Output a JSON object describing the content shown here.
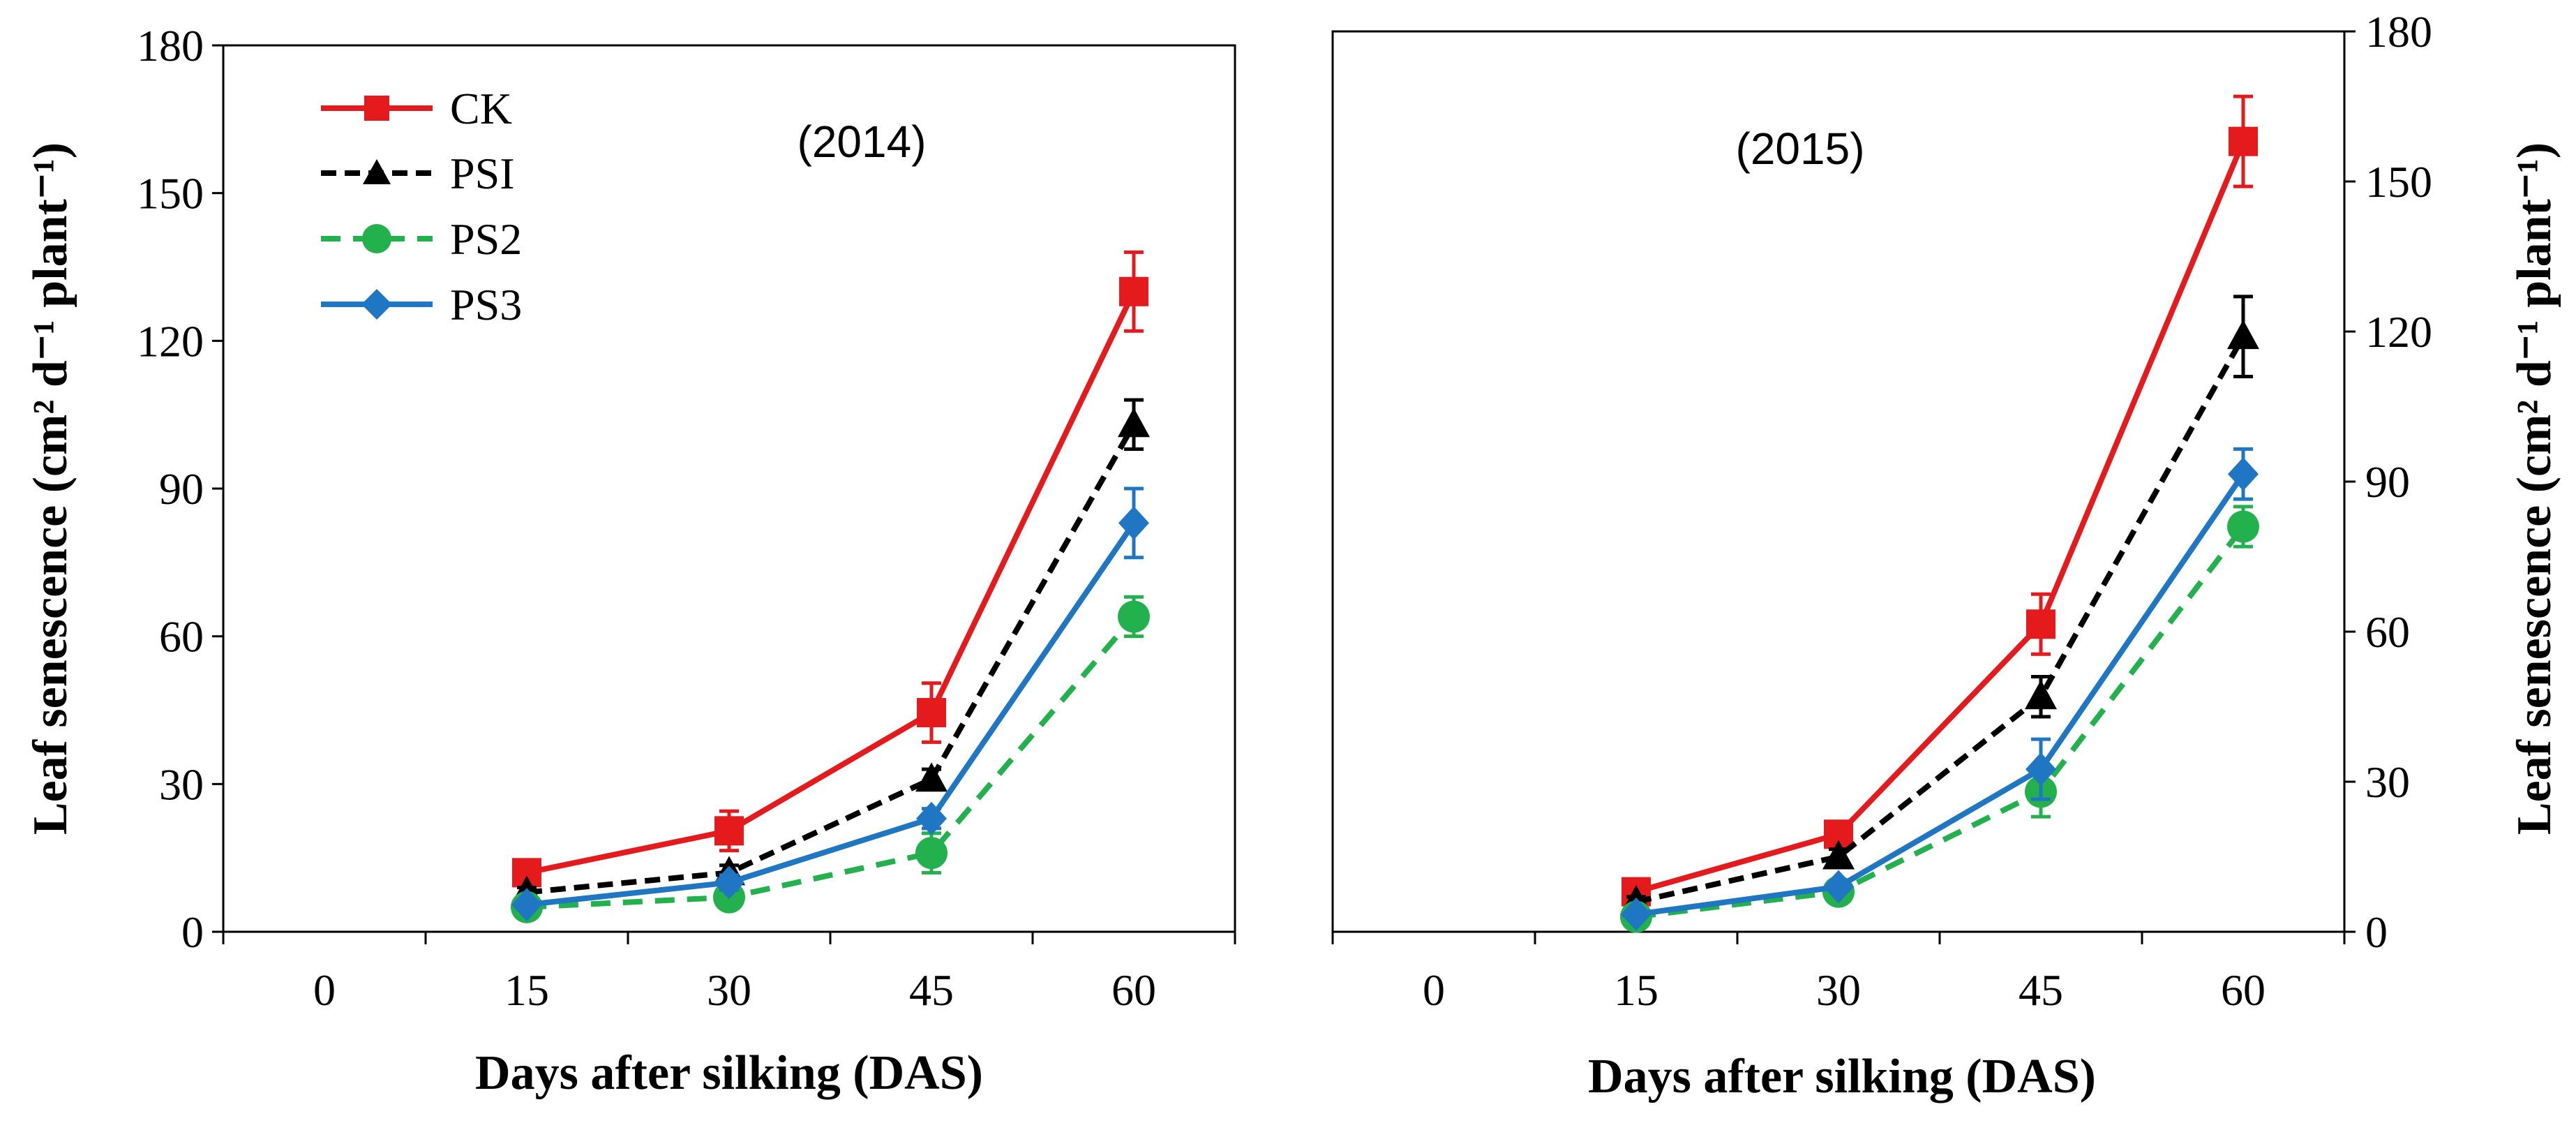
{
  "chart_data": [
    {
      "type": "line",
      "panel_label": "(2014)",
      "xlabel": "Days after silking (DAS)",
      "ylabel": "Leaf senescence (cm² d⁻¹ plant⁻¹)",
      "x_ticks": [
        "0",
        "15",
        "30",
        "45",
        "60"
      ],
      "y_ticks": [
        "0",
        "30",
        "60",
        "90",
        "120",
        "150",
        "180"
      ],
      "ylim": [
        0,
        180
      ],
      "y_axis_side": "left",
      "legend_position": "top-left",
      "x": [
        15,
        30,
        45,
        60
      ],
      "series": [
        {
          "name": "CK",
          "color": "#e41a1c",
          "dash": "solid",
          "marker": "square",
          "values": [
            12,
            20.5,
            44.5,
            130
          ],
          "errors": [
            2,
            4,
            6,
            8
          ]
        },
        {
          "name": "PSI",
          "color": "#000000",
          "dash": "dashed",
          "marker": "triangle",
          "values": [
            8,
            12,
            31,
            103
          ],
          "errors": [
            1,
            1.5,
            2,
            5
          ]
        },
        {
          "name": "PS2",
          "color": "#22b14c",
          "dash": "dashed",
          "marker": "circle",
          "values": [
            5,
            7,
            16,
            64
          ],
          "errors": [
            1,
            1.5,
            4,
            4
          ]
        },
        {
          "name": "PS3",
          "color": "#1f77c4",
          "dash": "solid",
          "marker": "diamond",
          "values": [
            5.5,
            10,
            23,
            83
          ],
          "errors": [
            1,
            1.5,
            2,
            7
          ]
        }
      ]
    },
    {
      "type": "line",
      "panel_label": "(2015)",
      "xlabel": "Days after silking (DAS)",
      "ylabel": "Leaf senescence (cm² d⁻¹ plant⁻¹)",
      "x_ticks": [
        "0",
        "15",
        "30",
        "45",
        "60"
      ],
      "y_ticks": [
        "0",
        "30",
        "60",
        "90",
        "120",
        "150",
        "180"
      ],
      "ylim": [
        0,
        180
      ],
      "y_axis_side": "right",
      "x": [
        15,
        30,
        45,
        60
      ],
      "series": [
        {
          "name": "CK",
          "color": "#e41a1c",
          "dash": "solid",
          "marker": "square",
          "values": [
            8,
            19.5,
            61.5,
            158
          ],
          "errors": [
            1.5,
            2,
            6,
            9
          ]
        },
        {
          "name": "PSI",
          "color": "#000000",
          "dash": "dashed",
          "marker": "triangle",
          "values": [
            6,
            15,
            47,
            119
          ],
          "errors": [
            1,
            1.5,
            4,
            8
          ]
        },
        {
          "name": "PS2",
          "color": "#22b14c",
          "dash": "dashed",
          "marker": "circle",
          "values": [
            3,
            8,
            28,
            81
          ],
          "errors": [
            1,
            1,
            5,
            4
          ]
        },
        {
          "name": "PS3",
          "color": "#1f77c4",
          "dash": "solid",
          "marker": "diamond",
          "values": [
            3.5,
            9,
            32.5,
            91.5
          ],
          "errors": [
            1,
            1,
            6,
            5
          ]
        }
      ]
    }
  ]
}
